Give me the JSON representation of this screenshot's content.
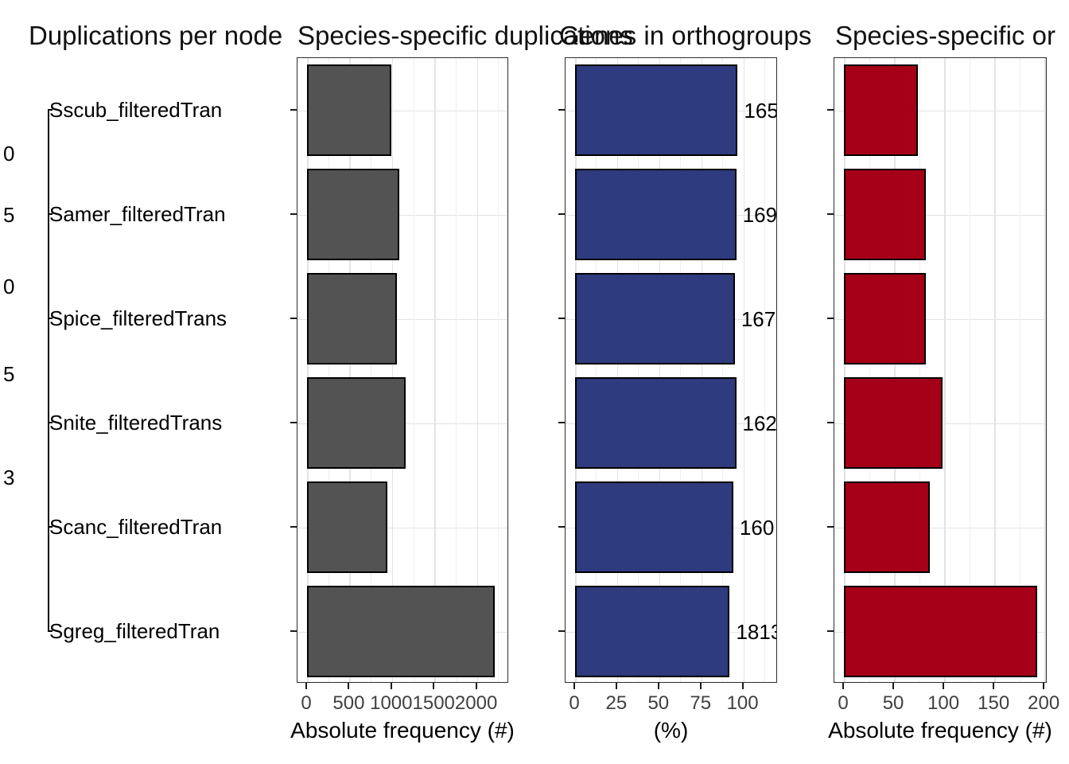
{
  "figure": {
    "titles": [
      {
        "text": "Duplications per node"
      },
      {
        "text": "Species-specific duplications"
      },
      {
        "text": "Genes in orthogroups"
      },
      {
        "text": "Species-specific or"
      }
    ],
    "colors": {
      "gray_bar": "#535353",
      "blue_bar": "#2E3B7E",
      "red_bar": "#A60018",
      "bar_outline": "#000000",
      "gridline": "#E3E3E3",
      "panel_border": "#2E2E2E",
      "tick_label": "#404040"
    }
  },
  "tree": {
    "tip_labels": [
      "Sscub_filteredTran",
      "Samer_filteredTran",
      "Spice_filteredTrans",
      "Snite_filteredTrans",
      "Scanc_filteredTran",
      "Sgreg_filteredTran"
    ],
    "node_labels": [
      "0",
      "5",
      "0",
      "5",
      "3"
    ]
  },
  "chart_data": [
    {
      "type": "bar",
      "name": "species-specific-duplications",
      "title": "Species-specific duplications",
      "categories": [
        "Sscub_filteredTran",
        "Samer_filteredTran",
        "Spice_filteredTrans",
        "Snite_filteredTrans",
        "Scanc_filteredTran",
        "Sgreg_filteredTran"
      ],
      "values": [
        990,
        1085,
        1055,
        1165,
        945,
        2210
      ],
      "xlabel": "Absolute frequency (#)",
      "ylabel": "",
      "xticks": [
        0,
        500,
        1000,
        1500,
        2000
      ],
      "xlim": [
        0,
        2378
      ],
      "bar_color": "#535353",
      "grid": true,
      "legend": false
    },
    {
      "type": "bar",
      "name": "genes-in-orthogroups",
      "title": "Genes in orthogroups",
      "categories": [
        "Sscub_filteredTran",
        "Samer_filteredTran",
        "Spice_filteredTrans",
        "Snite_filteredTrans",
        "Scanc_filteredTran",
        "Sgreg_filteredTran"
      ],
      "values": [
        96.6,
        95.8,
        94.9,
        95.7,
        94.0,
        91.9
      ],
      "bar_labels": [
        "165",
        "169",
        "167",
        "162",
        "160",
        "1813"
      ],
      "xlabel": "(%)",
      "ylabel": "",
      "xticks": [
        0,
        25,
        50,
        75,
        100
      ],
      "xlim": [
        0,
        120.5
      ],
      "bar_color": "#2E3B7E",
      "grid": true,
      "legend": false
    },
    {
      "type": "bar",
      "name": "species-specific-orthogroups",
      "title": "Species-specific or",
      "categories": [
        "Sscub_filteredTran",
        "Samer_filteredTran",
        "Spice_filteredTrans",
        "Snite_filteredTrans",
        "Scanc_filteredTran",
        "Sgreg_filteredTran"
      ],
      "values": [
        74,
        82,
        82,
        98,
        86,
        193
      ],
      "xlabel": "Absolute frequency (#)",
      "ylabel": "",
      "xticks": [
        0,
        50,
        100,
        150,
        200
      ],
      "xlim": [
        0,
        203
      ],
      "bar_color": "#A60018",
      "grid": true,
      "legend": false
    }
  ]
}
